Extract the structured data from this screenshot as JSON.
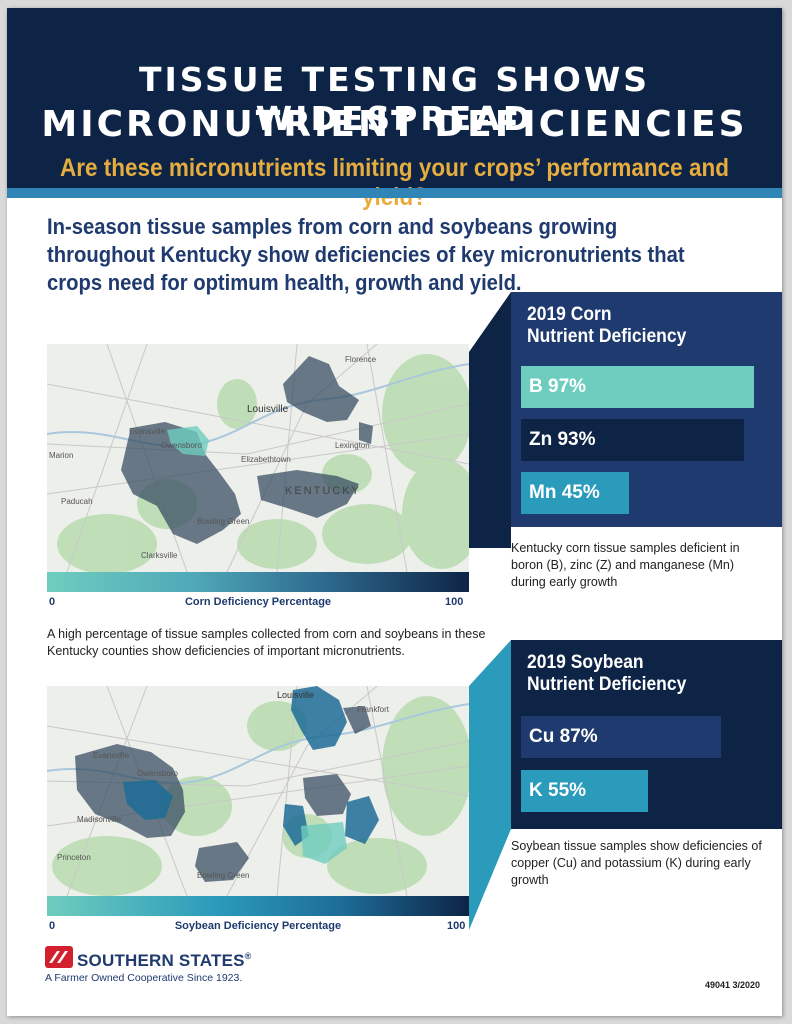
{
  "header": {
    "title_line1": "TISSUE TESTING SHOWS WIDESPREAD",
    "title_line2": "MICRONUTRIENT DEFICIENCIES",
    "subtitle": "Are these micronutrients limiting your crops’ performance and yield?"
  },
  "intro": "In-season tissue samples from corn and soybeans growing throughout Kentucky show deficiencies of key micronutrients that crops need for optimum health, growth and yield.",
  "corn_map": {
    "labels": {
      "florence": "Florence",
      "louisville": "Louisville",
      "lexington": "Lexington",
      "evansville": "Evansville",
      "owensboro": "Owensboro",
      "marion": "Marion",
      "elizabethtown": "Elizabethtown",
      "kentucky": "KENTUCKY",
      "paducah": "Paducah",
      "bowling_green": "Bowling Green",
      "clarksville": "Clarksville"
    },
    "scale_min": "0",
    "scale_title": "Corn Deficiency Percentage",
    "scale_max": "100"
  },
  "caption": "A high percentage of tissue samples collected from corn and soybeans in these Kentucky counties show deficiencies of important micronutrients.",
  "corn_panel": {
    "title_line1": "2019 Corn",
    "title_line2": "Nutrient Deficiency",
    "bars": [
      {
        "label": "B 97%",
        "value": 97,
        "color": "#6fcdbf"
      },
      {
        "label": "Zn 93%",
        "value": 93,
        "color": "#0e2446"
      },
      {
        "label": "Mn 45%",
        "value": 45,
        "color": "#2b9bbb"
      }
    ],
    "note": "Kentucky corn tissue samples deficient in boron (B), zinc (Z) and manganese (Mn) during early growth"
  },
  "soy_map": {
    "labels": {
      "louisville": "Louisville",
      "frankfort": "Frankfort",
      "evansville": "Evansville",
      "owensboro": "Owensboro",
      "madisonville": "Madisonville",
      "bowling_green": "Bowling Green",
      "princeton": "Princeton"
    },
    "scale_min": "0",
    "scale_title": "Soybean Deficiency Percentage",
    "scale_max": "100"
  },
  "soy_panel": {
    "title_line1": "2019 Soybean",
    "title_line2": "Nutrient Deficiency",
    "bars": [
      {
        "label": "Cu 87%",
        "value": 87,
        "color": "#1f3a6e"
      },
      {
        "label": "K 55%",
        "value": 55,
        "color": "#2b9bbb"
      }
    ],
    "note": "Soybean tissue samples show deficiencies of copper (Cu) and potassium (K) during early growth"
  },
  "footer": {
    "brand": "SOUTHERN STATES",
    "registered": "®",
    "tagline": "A Farmer Owned Cooperative Since 1923.",
    "doc_number": "49041 3/2020"
  },
  "colors": {
    "navy": "#0e2446",
    "blue": "#1f3a6e",
    "gold": "#e6ac3e",
    "teal": "#6fcdbf",
    "cyan": "#2b9bbb",
    "logo_red": "#d2202f"
  },
  "icons": [
    "southern-states-logo-icon"
  ]
}
